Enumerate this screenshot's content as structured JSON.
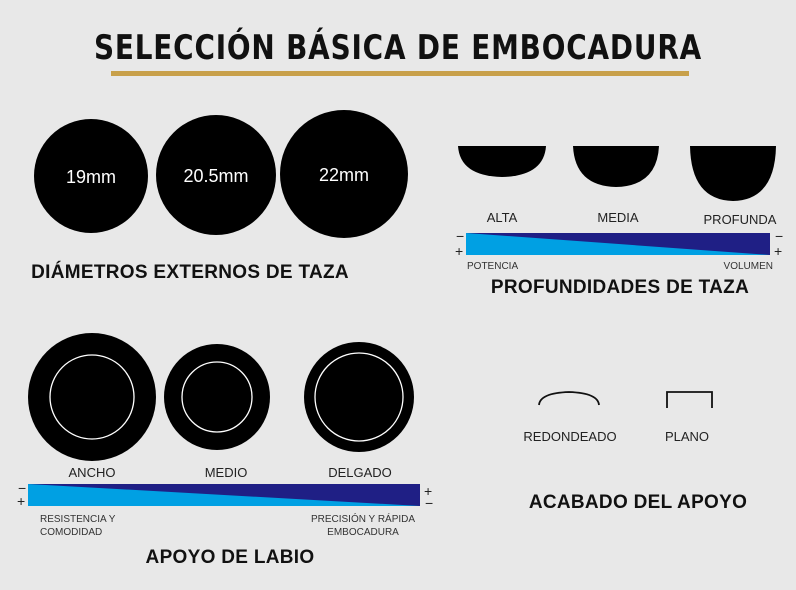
{
  "title": "SELECCIÓN BÁSICA DE EMBOCADURA",
  "colors": {
    "background": "#e8e8e8",
    "accent_rule": "#c8a04a",
    "gradient_light": "#00a0e3",
    "gradient_dark": "#1f1f85",
    "shape": "#000000"
  },
  "diameters": {
    "heading": "DIÁMETROS EXTERNOS DE TAZA",
    "items": [
      "19mm",
      "20.5mm",
      "22mm"
    ]
  },
  "depths": {
    "heading": "PROFUNDIDADES DE TAZA",
    "items": [
      "ALTA",
      "MEDIA",
      "PROFUNDA"
    ],
    "scale": {
      "left_top": "−",
      "left_bottom": "+",
      "right_top": "−",
      "right_bottom": "+",
      "left_label": "POTENCIA",
      "right_label": "VOLUMEN"
    }
  },
  "rim_width": {
    "heading": "APOYO DE LABIO",
    "items": [
      "ANCHO",
      "MEDIO",
      "DELGADO"
    ],
    "scale": {
      "left_top": "−",
      "left_bottom": "+",
      "right_top": "+",
      "right_bottom": "−",
      "left_label_1": "RESISTENCIA Y",
      "left_label_2": "COMODIDAD",
      "right_label_1": "PRECISIÓN Y RÁPIDA",
      "right_label_2": "EMBOCADURA"
    }
  },
  "rim_finish": {
    "heading": "ACABADO DEL APOYO",
    "items": [
      "REDONDEADO",
      "PLANO"
    ]
  }
}
